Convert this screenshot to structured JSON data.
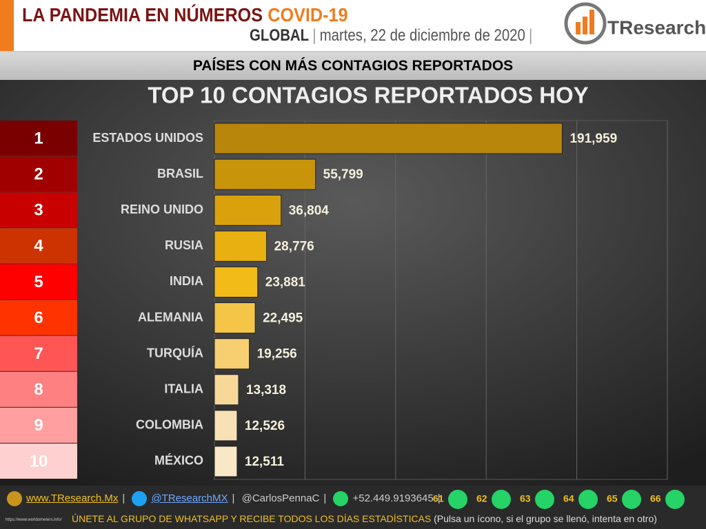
{
  "header": {
    "title": "LA PANDEMIA EN NÚMEROS",
    "title_highlight": "COVID-19",
    "scope": "GLOBAL",
    "date": "martes, 22 de diciembre de 2020",
    "logo": "TResearch"
  },
  "section_title": "PAÍSES CON MÁS CONTAGIOS REPORTADOS",
  "chart_data": {
    "type": "bar",
    "orientation": "horizontal",
    "title": "TOP 10 CONTAGIOS REPORTADOS HOY",
    "ranks": [
      "1",
      "2",
      "3",
      "4",
      "5",
      "6",
      "7",
      "8",
      "9",
      "10"
    ],
    "rank_colors": [
      "#7a0000",
      "#a00000",
      "#c80000",
      "#cc3300",
      "#ff0000",
      "#ff3300",
      "#ff5555",
      "#ff8080",
      "#ff9f9f",
      "#ffd0d0"
    ],
    "categories": [
      "ESTADOS UNIDOS",
      "BRASIL",
      "REINO UNIDO",
      "RUSIA",
      "INDIA",
      "ALEMANIA",
      "TURQUÍA",
      "ITALIA",
      "COLOMBIA",
      "MÉXICO"
    ],
    "values": [
      191959,
      55799,
      36804,
      28776,
      23881,
      22495,
      19256,
      13318,
      12526,
      12511
    ],
    "value_labels": [
      "191,959",
      "55,799",
      "36,804",
      "28,776",
      "23,881",
      "22,495",
      "19,256",
      "13,318",
      "12,526",
      "12,511"
    ],
    "colors": [
      "#b8860b",
      "#c8940a",
      "#d9a20c",
      "#e8b010",
      "#f2bb18",
      "#f5c548",
      "#f7cf70",
      "#f7d898",
      "#f8e1b5",
      "#f9e8c8"
    ],
    "xlim": [
      0,
      250000
    ],
    "xticks": [
      0,
      50000,
      100000,
      150000,
      200000,
      250000
    ],
    "grid": true
  },
  "footer": {
    "website": "www.TResearch.Mx",
    "twitter": "@TResearchMX",
    "twitter2": "@CarlosPennaC",
    "phone": "+52.449.9193645",
    "groups": [
      "61",
      "62",
      "63",
      "64",
      "65",
      "66"
    ],
    "cta": "ÚNETE AL GRUPO DE WHATSAPP Y RECIBE TODOS LOS DÍAS ESTADÍSTICAS",
    "cta_note": "(Pulsa un ícono, si el grupo se llenó, intenta en otro)",
    "source": "https://www.worldometers.info/"
  }
}
